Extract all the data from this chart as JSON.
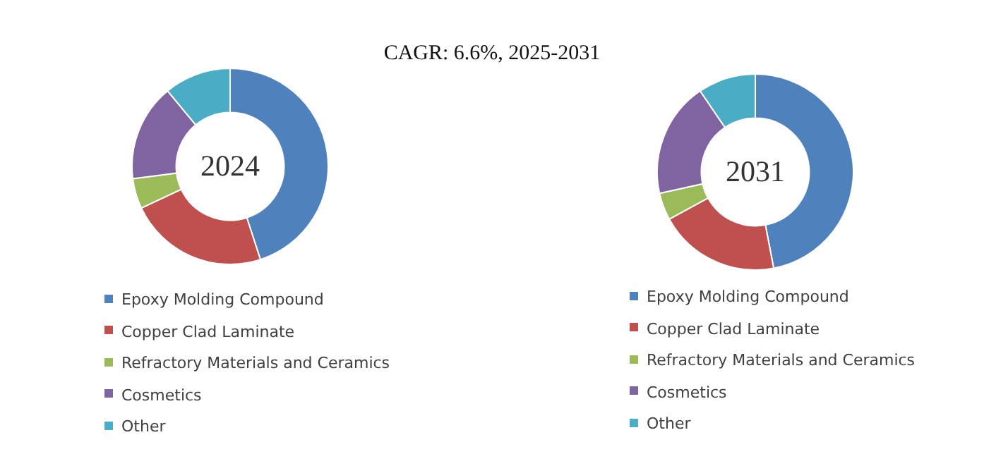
{
  "chart_data": [
    {
      "type": "donut",
      "title": "CAGR:   6.6%, 2025-2031",
      "annotations": [
        "2024"
      ],
      "categories": [
        "Epoxy Molding Compound",
        "Copper Clad Laminate",
        "Refractory Materials and Ceramics",
        "Cosmetics",
        "Other"
      ],
      "values": [
        45,
        23,
        5,
        16,
        11
      ],
      "colors": [
        "#4f81bd",
        "#c0504d",
        "#9bbb59",
        "#8064a2",
        "#4bacc6"
      ],
      "legend": "bottom"
    },
    {
      "type": "donut",
      "annotations": [
        "2031"
      ],
      "categories": [
        "Epoxy Molding Compound",
        "Copper Clad Laminate",
        "Refractory Materials and Ceramics",
        "Cosmetics",
        "Other"
      ],
      "values": [
        47,
        20,
        4.5,
        19,
        9.5
      ],
      "colors": [
        "#4f81bd",
        "#c0504d",
        "#9bbb59",
        "#8064a2",
        "#4bacc6"
      ],
      "legend": "bottom"
    }
  ]
}
